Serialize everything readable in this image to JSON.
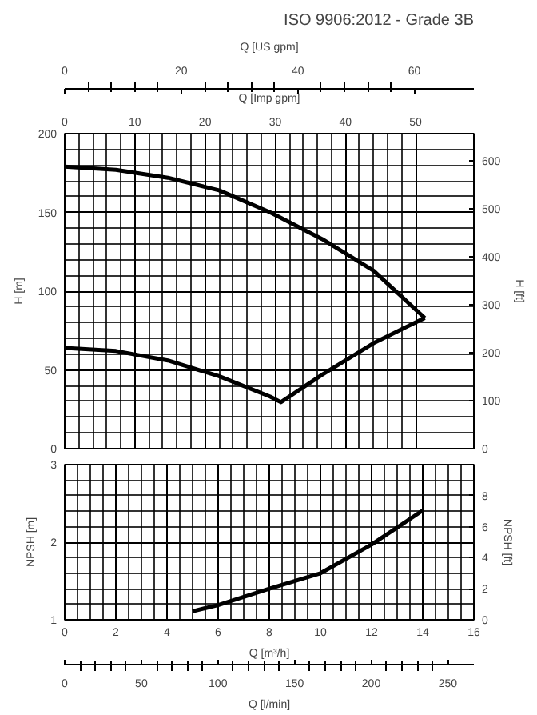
{
  "chart_data": [
    {
      "type": "line",
      "title": "ISO 9906:2012 - Grade 3B",
      "xlabel": "Q [Imp gpm]",
      "xlim": [
        0,
        58.3
      ],
      "xticks": [
        0,
        10,
        20,
        30,
        40,
        50
      ],
      "ylim": [
        0,
        200
      ],
      "yticks": [
        0,
        50,
        100,
        150,
        200
      ],
      "ylabel": "H [m]",
      "y2label": "H [ft]",
      "y2lim": [
        0,
        656
      ],
      "y2ticks": [
        0,
        100,
        200,
        300,
        400,
        500,
        600
      ],
      "x2label": "Q [US gpm]",
      "x2lim": [
        0,
        70.2
      ],
      "x2ticks": [
        0,
        20,
        40,
        60
      ],
      "grid": true,
      "line_style": "solid",
      "marker": "none",
      "series": [
        {
          "color": "#000000",
          "x": [
            0,
            7.3,
            14.7,
            22,
            29.3,
            36.7,
            44,
            51.3
          ],
          "values": [
            179,
            177,
            172,
            164,
            150,
            133,
            113,
            83
          ]
        },
        {
          "color": "#000000",
          "x": [
            0,
            7.3,
            14.7,
            22,
            29.3,
            30.8,
            36.7,
            44,
            51.3
          ],
          "values": [
            64,
            62,
            56,
            46,
            33,
            29.5,
            47,
            67,
            83
          ]
        }
      ]
    },
    {
      "type": "line",
      "xlim": [
        0,
        16
      ],
      "xticks": [
        0,
        2,
        4,
        6,
        8,
        10,
        12,
        14,
        16
      ],
      "xlabel": "Q [m³/h]",
      "x2label": "Q [l/min]",
      "x2lim": [
        0,
        267
      ],
      "x2ticks": [
        0,
        50,
        100,
        150,
        200,
        250
      ],
      "ylim": [
        1,
        3
      ],
      "yticks": [
        1,
        2,
        3
      ],
      "ylabel": "NPSH [m]",
      "y2label": "NPSH [ft]",
      "y2lim": [
        0,
        10
      ],
      "y2ticks": [
        0,
        2,
        4,
        6,
        8
      ],
      "grid": true,
      "line_style": "solid",
      "marker": "none",
      "series": [
        {
          "color": "#000000",
          "x": [
            5,
            6,
            8,
            10,
            12,
            14
          ],
          "values": [
            1.11,
            1.19,
            1.4,
            1.6,
            1.97,
            2.41
          ]
        }
      ]
    }
  ]
}
